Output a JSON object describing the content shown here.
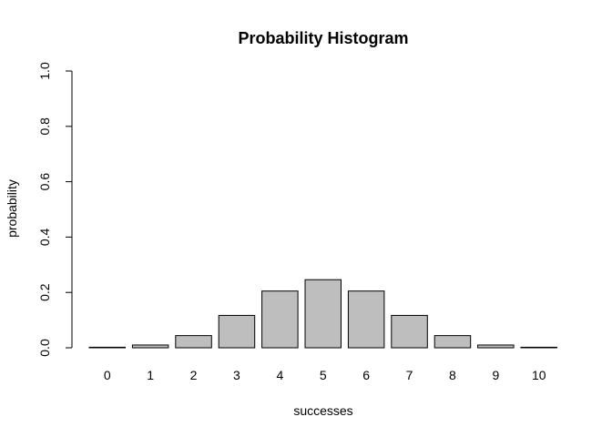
{
  "chart_data": {
    "type": "bar",
    "title": "Probability Histogram",
    "xlabel": "successes",
    "ylabel": "probability",
    "categories": [
      "0",
      "1",
      "2",
      "3",
      "4",
      "5",
      "6",
      "7",
      "8",
      "9",
      "10"
    ],
    "values": [
      0.001,
      0.01,
      0.044,
      0.117,
      0.205,
      0.246,
      0.205,
      0.117,
      0.044,
      0.01,
      0.001
    ],
    "ylim": [
      0,
      1
    ],
    "yticks": [
      "0.0",
      "0.2",
      "0.4",
      "0.6",
      "0.8",
      "1.0"
    ],
    "grid": false,
    "colors": {
      "bar_fill": "#bebebe",
      "bar_stroke": "#000000"
    }
  }
}
